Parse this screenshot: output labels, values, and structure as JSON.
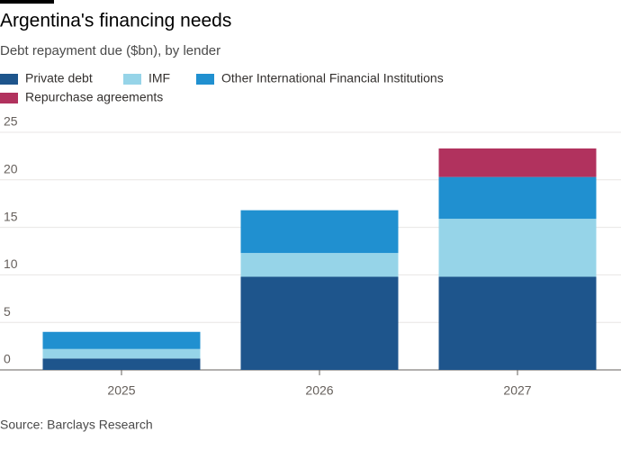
{
  "chart_data": {
    "type": "stacked-bar",
    "title": "Argentina's financing needs",
    "subtitle": "Debt repayment due ($bn), by lender",
    "source": "Source: Barclays Research",
    "categories": [
      "2025",
      "2026",
      "2027"
    ],
    "series": [
      {
        "name": "Private debt",
        "color": "#1e558c",
        "values": [
          1.2,
          9.8,
          9.8
        ]
      },
      {
        "name": "IMF",
        "color": "#96d4e8",
        "values": [
          1.0,
          2.5,
          6.1
        ]
      },
      {
        "name": "Other International Financial Institutions",
        "color": "#2090d0",
        "values": [
          1.8,
          4.5,
          4.4
        ]
      },
      {
        "name": "Repurchase agreements",
        "color": "#b1325e",
        "values": [
          0,
          0,
          3.0
        ]
      }
    ],
    "ylim": [
      0,
      25
    ],
    "yticks": [
      0,
      5,
      10,
      15,
      20,
      25
    ],
    "grid": true
  }
}
